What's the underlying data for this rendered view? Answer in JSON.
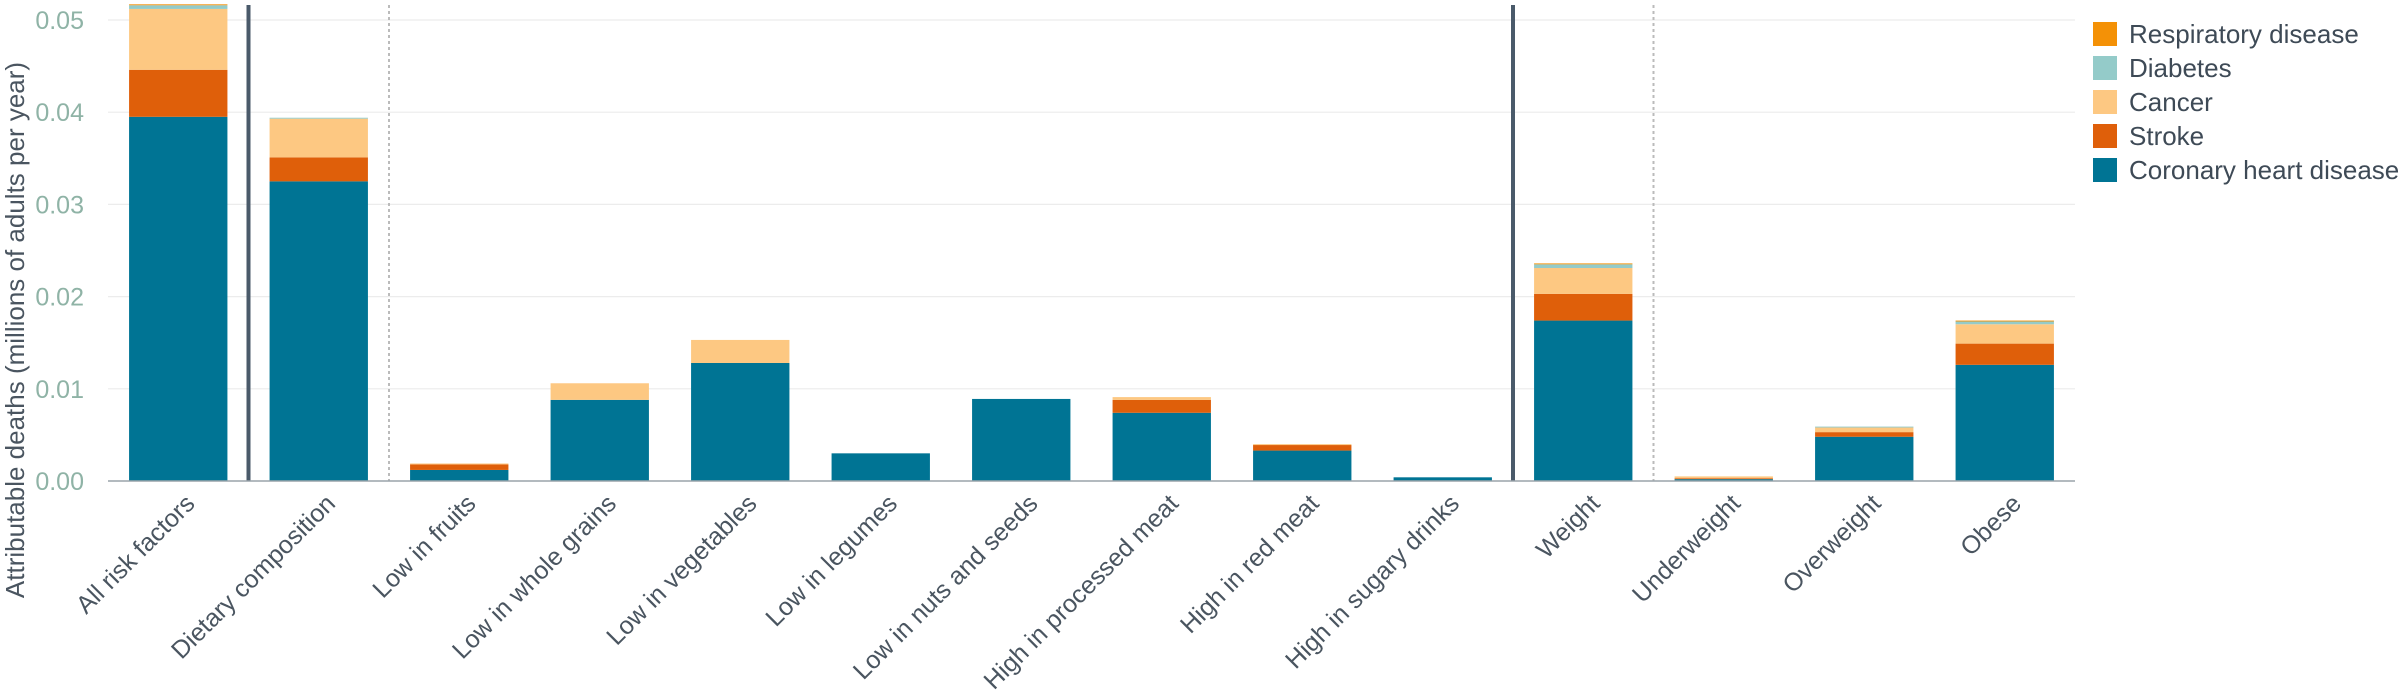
{
  "chart_data": {
    "type": "bar",
    "stacked": true,
    "ylabel": "Attributable deaths (millions of adults per year)",
    "ylim": [
      0,
      0.05
    ],
    "yticks": [
      "0.00",
      "0.01",
      "0.02",
      "0.03",
      "0.04",
      "0.05"
    ],
    "grid": true,
    "legend_position": "top-right",
    "categories": [
      "All risk factors",
      "Dietary composition",
      "Low in fruits",
      "Low in whole grains",
      "Low in vegetables",
      "Low in legumes",
      "Low in nuts and seeds",
      "High in processed meat",
      "High in red meat",
      "High in sugary drinks",
      "Weight",
      "Underweight",
      "Overweight",
      "Obese"
    ],
    "series": [
      {
        "name": "Coronary heart disease",
        "color": "#007494",
        "values": [
          0.0395,
          0.0325,
          0.0012,
          0.0088,
          0.0128,
          0.003,
          0.0089,
          0.0074,
          0.0033,
          0.0004,
          0.0174,
          0.0002,
          0.0048,
          0.0126
        ]
      },
      {
        "name": "Stroke",
        "color": "#df5f0a",
        "values": [
          0.0051,
          0.0026,
          0.0006,
          0.0,
          0.0,
          0.0,
          0.0,
          0.0014,
          0.0006,
          0.0,
          0.0029,
          0.0001,
          0.0005,
          0.0023
        ]
      },
      {
        "name": "Cancer",
        "color": "#fdc882",
        "values": [
          0.0066,
          0.0042,
          0.0001,
          0.0018,
          0.0025,
          0.0,
          0.0,
          0.0003,
          0.0001,
          0.0,
          0.0028,
          0.0002,
          0.0005,
          0.0021
        ]
      },
      {
        "name": "Diabetes",
        "color": "#94cbc9",
        "values": [
          0.0004,
          0.0001,
          0.0,
          0.0,
          0.0,
          0.0,
          0.0,
          0.0,
          0.0,
          0.0,
          0.0004,
          0.0,
          0.0001,
          0.0003
        ]
      },
      {
        "name": "Respiratory disease",
        "color": "#f49106",
        "values": [
          0.0001,
          0.0,
          0.0,
          0.0,
          0.0,
          0.0,
          0.0,
          0.0,
          0.0,
          0.0,
          0.0001,
          0.0,
          0.0,
          0.0001
        ]
      }
    ],
    "legend_order": [
      "Respiratory disease",
      "Diabetes",
      "Cancer",
      "Stroke",
      "Coronary heart disease"
    ],
    "group_separators": {
      "solid_after": [
        0,
        9
      ],
      "dotted_after": [
        1,
        10
      ]
    }
  }
}
